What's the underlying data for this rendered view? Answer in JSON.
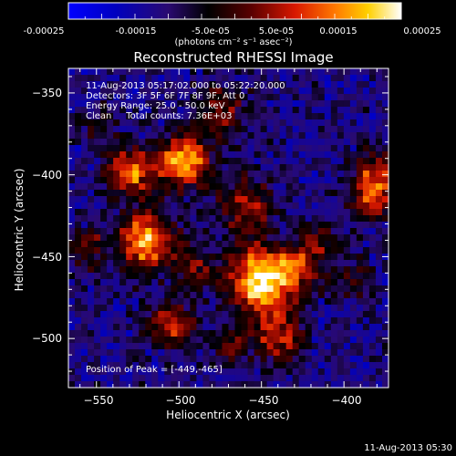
{
  "colorbar": {
    "ticks": [
      "-0.00025",
      "-0.00015",
      "-5.0e-05",
      "5.0e-05",
      "0.00015",
      "0.00025"
    ],
    "unit_label": "(photons cm⁻² s⁻¹ asec⁻²)",
    "range": [
      -0.00025,
      0.00025
    ]
  },
  "image": {
    "title": "Reconstructed RHESSI Image",
    "info_lines": [
      "11-Aug-2013 05:17:02.000 to 05:22:20.000",
      "Detectors: 3F 5F 6F 7F 8F 9F, Att 0",
      "Energy Range: 25.0 - 50.0 keV",
      "Clean     Total counts: 7.36E+03"
    ],
    "peak_label": "Position of Peak = [-449,-465]",
    "footer_timestamp": "11-Aug-2013 05:30"
  },
  "chart_data": {
    "type": "heatmap",
    "title": "Reconstructed RHESSI Image",
    "xlabel": "Heliocentric X (arcsec)",
    "ylabel": "Heliocentric Y (arcsec)",
    "xlim": [
      -567,
      -373
    ],
    "ylim": [
      -530,
      -335
    ],
    "x_ticks": [
      -550,
      -500,
      -450,
      -400
    ],
    "y_ticks": [
      -350,
      -400,
      -450,
      -500
    ],
    "peak": [
      -449,
      -465
    ],
    "sources": [
      {
        "x": -449,
        "y": -465,
        "amp": 1.0,
        "sigma": 14
      },
      {
        "x": -520,
        "y": -440,
        "amp": 0.82,
        "sigma": 12
      },
      {
        "x": -530,
        "y": -398,
        "amp": 0.72,
        "sigma": 10
      },
      {
        "x": -497,
        "y": -392,
        "amp": 0.8,
        "sigma": 11
      },
      {
        "x": -475,
        "y": -360,
        "amp": 0.4,
        "sigma": 11
      },
      {
        "x": -380,
        "y": -400,
        "amp": 0.5,
        "sigma": 10
      },
      {
        "x": -383,
        "y": -415,
        "amp": 0.45,
        "sigma": 9
      },
      {
        "x": -395,
        "y": -465,
        "amp": 0.3,
        "sigma": 8
      },
      {
        "x": -505,
        "y": -492,
        "amp": 0.55,
        "sigma": 9
      },
      {
        "x": -460,
        "y": -420,
        "amp": 0.45,
        "sigma": 12
      },
      {
        "x": -440,
        "y": -500,
        "amp": 0.5,
        "sigma": 10
      },
      {
        "x": -555,
        "y": -445,
        "amp": 0.35,
        "sigma": 8
      },
      {
        "x": -490,
        "y": -455,
        "amp": 0.35,
        "sigma": 9
      },
      {
        "x": -425,
        "y": -455,
        "amp": 0.4,
        "sigma": 9
      },
      {
        "x": -470,
        "y": -505,
        "amp": 0.3,
        "sigma": 8
      },
      {
        "x": -550,
        "y": -370,
        "amp": 0.25,
        "sigma": 8
      },
      {
        "x": -415,
        "y": -440,
        "amp": 0.3,
        "sigma": 7
      }
    ]
  }
}
